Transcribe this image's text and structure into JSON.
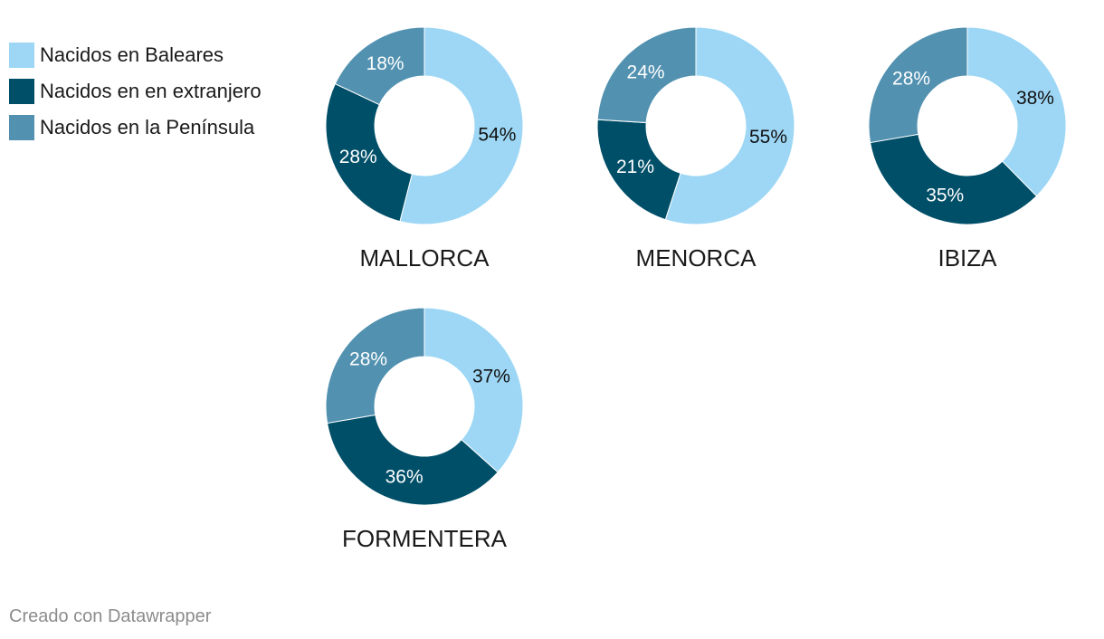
{
  "legend": {
    "items": [
      {
        "label": "Nacidos en Baleares",
        "color": "#9dd7f5"
      },
      {
        "label": "Nacidos en en extranjero",
        "color": "#004f68"
      },
      {
        "label": "Nacidos en la Península",
        "color": "#5291b0"
      }
    ]
  },
  "footer": {
    "credit": "Creado con Datawrapper"
  },
  "chart_data": [
    {
      "type": "pie",
      "title": "MALLORCA",
      "categories": [
        "Nacidos en Baleares",
        "Nacidos en en extranjero",
        "Nacidos en la Península"
      ],
      "values": [
        54,
        28,
        18
      ],
      "labels": [
        "54%",
        "28%",
        "18%"
      ]
    },
    {
      "type": "pie",
      "title": "MENORCA",
      "categories": [
        "Nacidos en Baleares",
        "Nacidos en en extranjero",
        "Nacidos en la Península"
      ],
      "values": [
        55,
        21,
        24
      ],
      "labels": [
        "55%",
        "21%",
        "24%"
      ]
    },
    {
      "type": "pie",
      "title": "IBIZA",
      "categories": [
        "Nacidos en Baleares",
        "Nacidos en en extranjero",
        "Nacidos en la Península"
      ],
      "values": [
        38,
        35,
        28
      ],
      "labels": [
        "38%",
        "35%",
        "28%"
      ]
    },
    {
      "type": "pie",
      "title": "FORMENTERA",
      "categories": [
        "Nacidos en Baleares",
        "Nacidos en en extranjero",
        "Nacidos en la Península"
      ],
      "values": [
        37,
        36,
        28
      ],
      "labels": [
        "37%",
        "36%",
        "28%"
      ]
    }
  ]
}
